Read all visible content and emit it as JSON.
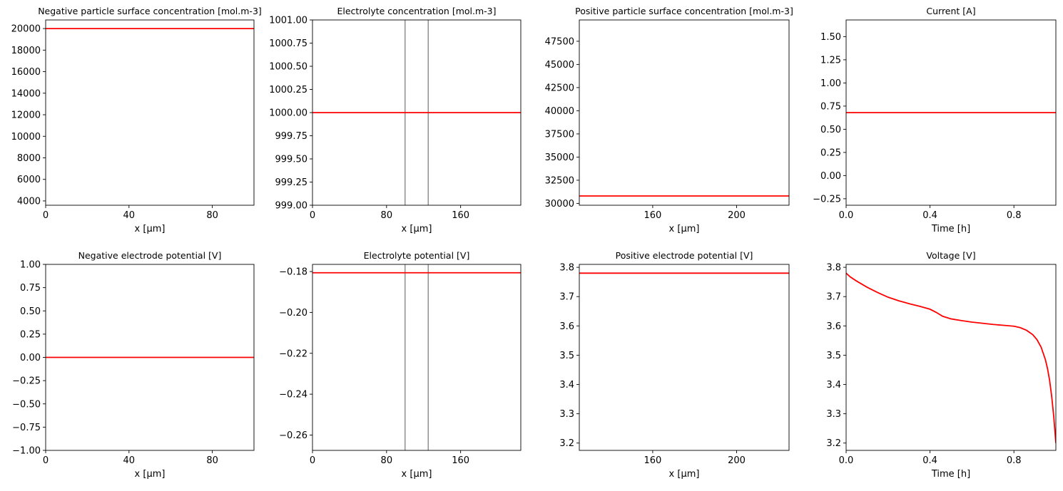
{
  "figure": {
    "plot_color": "#ff0000",
    "separator_color": "#808080"
  },
  "chart_data": [
    {
      "type": "line",
      "title": "Negative particle surface concentration [mol.m-3]",
      "xlabel": "x [μm]",
      "ylabel": "",
      "xlim": [
        0,
        100
      ],
      "ylim": [
        3600,
        20800
      ],
      "xticks": [
        0,
        40,
        80
      ],
      "xtick_labels": [
        "0",
        "40",
        "80"
      ],
      "yticks": [
        4000,
        6000,
        8000,
        10000,
        12000,
        14000,
        16000,
        18000,
        20000
      ],
      "ytick_labels": [
        "4000",
        "6000",
        "8000",
        "10000",
        "12000",
        "14000",
        "16000",
        "18000",
        "20000"
      ],
      "series": [
        {
          "x": [
            0,
            100
          ],
          "y": [
            20000,
            20000
          ]
        }
      ],
      "separators": []
    },
    {
      "type": "line",
      "title": "Electrolyte concentration [mol.m-3]",
      "xlabel": "x [μm]",
      "ylabel": "",
      "xlim": [
        0,
        225
      ],
      "ylim": [
        999.0,
        1001.0
      ],
      "xticks": [
        0,
        80,
        160
      ],
      "xtick_labels": [
        "0",
        "80",
        "160"
      ],
      "yticks": [
        999.0,
        999.25,
        999.5,
        999.75,
        1000.0,
        1000.25,
        1000.5,
        1000.75,
        1001.0
      ],
      "ytick_labels": [
        "999.00",
        "999.25",
        "999.50",
        "999.75",
        "1000.00",
        "1000.25",
        "1000.50",
        "1000.75",
        "1001.00"
      ],
      "series": [
        {
          "x": [
            0,
            225
          ],
          "y": [
            1000.0,
            1000.0
          ]
        }
      ],
      "separators": [
        100,
        125
      ]
    },
    {
      "type": "line",
      "title": "Positive particle surface concentration [mol.m-3]",
      "xlabel": "x [μm]",
      "ylabel": "",
      "xlim": [
        125,
        225
      ],
      "ylim": [
        29800,
        49800
      ],
      "xticks": [
        160,
        200
      ],
      "xtick_labels": [
        "160",
        "200"
      ],
      "yticks": [
        30000,
        32500,
        35000,
        37500,
        40000,
        42500,
        45000,
        47500
      ],
      "ytick_labels": [
        "30000",
        "32500",
        "35000",
        "37500",
        "40000",
        "42500",
        "45000",
        "47500"
      ],
      "series": [
        {
          "x": [
            125,
            225
          ],
          "y": [
            30800,
            30800
          ]
        }
      ],
      "separators": []
    },
    {
      "type": "line",
      "title": "Current [A]",
      "xlabel": "Time [h]",
      "ylabel": "",
      "xlim": [
        0,
        1.0
      ],
      "ylim": [
        -0.32,
        1.68
      ],
      "xticks": [
        0,
        0.4,
        0.8
      ],
      "xtick_labels": [
        "0.0",
        "0.4",
        "0.8"
      ],
      "yticks": [
        -0.25,
        0.0,
        0.25,
        0.5,
        0.75,
        1.0,
        1.25,
        1.5
      ],
      "ytick_labels": [
        "−0.25",
        "0.00",
        "0.25",
        "0.50",
        "0.75",
        "1.00",
        "1.25",
        "1.50"
      ],
      "series": [
        {
          "x": [
            0,
            1.0
          ],
          "y": [
            0.68,
            0.68
          ]
        }
      ],
      "separators": []
    },
    {
      "type": "line",
      "title": "Negative electrode potential [V]",
      "xlabel": "x [μm]",
      "ylabel": "",
      "xlim": [
        0,
        100
      ],
      "ylim": [
        -1.0,
        1.0
      ],
      "xticks": [
        0,
        40,
        80
      ],
      "xtick_labels": [
        "0",
        "40",
        "80"
      ],
      "yticks": [
        -1.0,
        -0.75,
        -0.5,
        -0.25,
        0.0,
        0.25,
        0.5,
        0.75,
        1.0
      ],
      "ytick_labels": [
        "−1.00",
        "−0.75",
        "−0.50",
        "−0.25",
        "0.00",
        "0.25",
        "0.50",
        "0.75",
        "1.00"
      ],
      "series": [
        {
          "x": [
            0,
            100
          ],
          "y": [
            0.0,
            0.0
          ]
        }
      ],
      "separators": []
    },
    {
      "type": "line",
      "title": "Electrolyte potential [V]",
      "xlabel": "x [μm]",
      "ylabel": "",
      "xlim": [
        0,
        225
      ],
      "ylim": [
        -0.2675,
        -0.1765
      ],
      "xticks": [
        0,
        80,
        160
      ],
      "xtick_labels": [
        "0",
        "80",
        "160"
      ],
      "yticks": [
        -0.26,
        -0.24,
        -0.22,
        -0.2,
        -0.18
      ],
      "ytick_labels": [
        "−0.26",
        "−0.24",
        "−0.22",
        "−0.20",
        "−0.18"
      ],
      "series": [
        {
          "x": [
            0,
            225
          ],
          "y": [
            -0.1806,
            -0.1806
          ]
        }
      ],
      "separators": [
        100,
        125
      ]
    },
    {
      "type": "line",
      "title": "Positive electrode potential [V]",
      "xlabel": "x [μm]",
      "ylabel": "",
      "xlim": [
        125,
        225
      ],
      "ylim": [
        3.175,
        3.81
      ],
      "xticks": [
        160,
        200
      ],
      "xtick_labels": [
        "160",
        "200"
      ],
      "yticks": [
        3.2,
        3.3,
        3.4,
        3.5,
        3.6,
        3.7,
        3.8
      ],
      "ytick_labels": [
        "3.2",
        "3.3",
        "3.4",
        "3.5",
        "3.6",
        "3.7",
        "3.8"
      ],
      "series": [
        {
          "x": [
            125,
            225
          ],
          "y": [
            3.78,
            3.78
          ]
        }
      ],
      "separators": []
    },
    {
      "type": "line",
      "title": "Voltage [V]",
      "xlabel": "Time [h]",
      "ylabel": "",
      "xlim": [
        0,
        1.0
      ],
      "ylim": [
        3.175,
        3.81
      ],
      "xticks": [
        0,
        0.4,
        0.8
      ],
      "xtick_labels": [
        "0.0",
        "0.4",
        "0.8"
      ],
      "yticks": [
        3.2,
        3.3,
        3.4,
        3.5,
        3.6,
        3.7,
        3.8
      ],
      "ytick_labels": [
        "3.2",
        "3.3",
        "3.4",
        "3.5",
        "3.6",
        "3.7",
        "3.8"
      ],
      "series": [
        {
          "x": [
            0.0,
            0.02,
            0.05,
            0.1,
            0.15,
            0.2,
            0.25,
            0.3,
            0.35,
            0.4,
            0.43,
            0.46,
            0.5,
            0.55,
            0.6,
            0.65,
            0.7,
            0.75,
            0.8,
            0.83,
            0.86,
            0.89,
            0.91,
            0.93,
            0.95,
            0.96,
            0.97,
            0.98,
            0.99,
            1.0
          ],
          "y": [
            3.78,
            3.767,
            3.753,
            3.732,
            3.714,
            3.698,
            3.686,
            3.676,
            3.667,
            3.657,
            3.646,
            3.633,
            3.624,
            3.618,
            3.613,
            3.609,
            3.605,
            3.602,
            3.599,
            3.594,
            3.585,
            3.57,
            3.553,
            3.527,
            3.485,
            3.455,
            3.415,
            3.36,
            3.29,
            3.2
          ]
        }
      ],
      "separators": []
    }
  ]
}
